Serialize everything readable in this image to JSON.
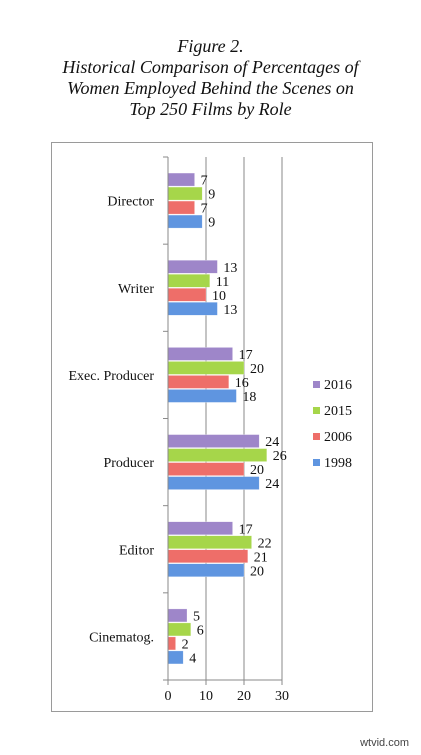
{
  "chart_data": {
    "type": "bar",
    "orientation": "horizontal",
    "title_lines": [
      "Figure 2.",
      "Historical Comparison of Percentages of",
      "Women Employed Behind the Scenes on",
      "Top 250 Films by Role"
    ],
    "categories": [
      "Director",
      "Writer",
      "Exec. Producer",
      "Producer",
      "Editor",
      "Cinematog."
    ],
    "series": [
      {
        "name": "2016",
        "color": "#9e86c9",
        "values": [
          7,
          13,
          17,
          24,
          17,
          5
        ]
      },
      {
        "name": "2015",
        "color": "#a6d64a",
        "values": [
          9,
          11,
          20,
          26,
          22,
          6
        ]
      },
      {
        "name": "2006",
        "color": "#ee6e69",
        "values": [
          7,
          10,
          16,
          20,
          21,
          2
        ]
      },
      {
        "name": "1998",
        "color": "#5f95e0",
        "values": [
          9,
          13,
          18,
          24,
          20,
          4
        ]
      }
    ],
    "xlim": [
      0,
      30
    ],
    "xticks": [
      0,
      10,
      20,
      30
    ],
    "grid": true,
    "legend": "right",
    "data_labels": true
  },
  "watermark": "wtvid.com"
}
